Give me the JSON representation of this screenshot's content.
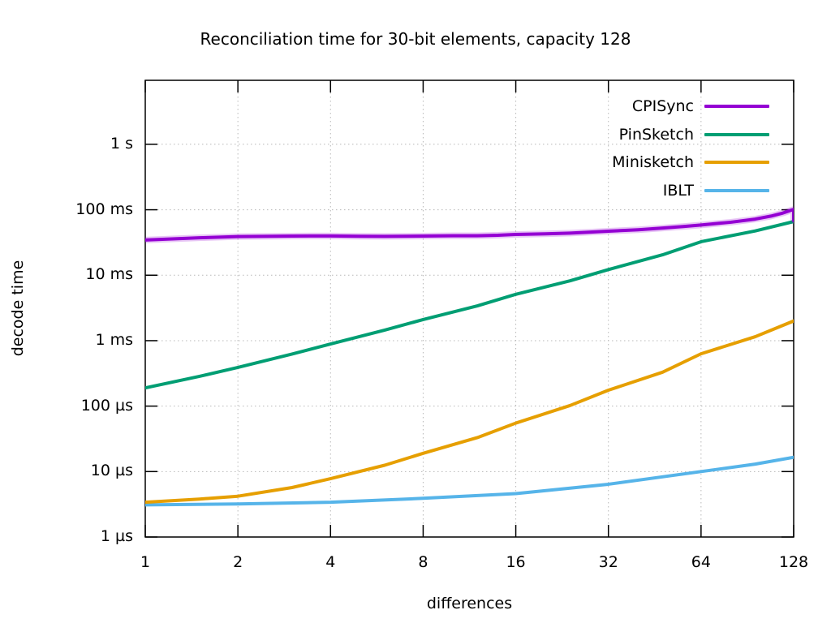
{
  "title": "Reconciliation time for 30-bit elements, capacity 128",
  "chart_data": {
    "type": "line",
    "title": "Reconciliation time for 30-bit elements, capacity 128",
    "xlabel": "differences",
    "ylabel": "decode time",
    "x_scale": "log2",
    "y_scale": "log10",
    "grid": true,
    "legend_position": "top-right-inside",
    "x_range": [
      1,
      128
    ],
    "y_range_seconds": [
      1e-06,
      9.5
    ],
    "x_ticks": [
      {
        "label": "1",
        "value": 1
      },
      {
        "label": "2",
        "value": 2
      },
      {
        "label": "4",
        "value": 4
      },
      {
        "label": "8",
        "value": 8
      },
      {
        "label": "16",
        "value": 16
      },
      {
        "label": "32",
        "value": 32
      },
      {
        "label": "64",
        "value": 64
      },
      {
        "label": "128",
        "value": 128
      }
    ],
    "y_ticks": [
      {
        "label": "1 µs",
        "value": 1e-06
      },
      {
        "label": "10 µs",
        "value": 1e-05
      },
      {
        "label": "100 µs",
        "value": 0.0001
      },
      {
        "label": "1 ms",
        "value": 0.001
      },
      {
        "label": "10 ms",
        "value": 0.01
      },
      {
        "label": "100 ms",
        "value": 0.1
      },
      {
        "label": "1 s",
        "value": 1
      }
    ],
    "colors": {
      "grid": "#b8b8b8",
      "border": "#000000",
      "cpisync": "#9400d3",
      "pinsketch": "#009e73",
      "minisketch": "#e69f00",
      "iblt": "#56b4e9"
    },
    "series": [
      {
        "name": "CPISync",
        "color": "#9400d3",
        "x": [
          1,
          1.5,
          2,
          3,
          4,
          5,
          6,
          8,
          10,
          12,
          14,
          16,
          20,
          24,
          28,
          32,
          40,
          48,
          56,
          64,
          80,
          96,
          108,
          118,
          126,
          128,
          128
        ],
        "y_us": [
          34500,
          37300,
          39000,
          39700,
          39800,
          39400,
          39200,
          39700,
          40000,
          40100,
          40800,
          42000,
          42800,
          44000,
          45500,
          47000,
          49500,
          52500,
          55500,
          58500,
          64500,
          72000,
          80000,
          89000,
          99000,
          101000,
          68500
        ]
      },
      {
        "name": "PinSketch",
        "color": "#009e73",
        "x": [
          1,
          1.5,
          2,
          3,
          4,
          6,
          8,
          12,
          16,
          24,
          32,
          48,
          64,
          96,
          128
        ],
        "y_us": [
          190,
          285,
          390,
          625,
          890,
          1450,
          2100,
          3400,
          5100,
          8200,
          12200,
          20500,
          32500,
          47500,
          66000
        ]
      },
      {
        "name": "Minisketch",
        "color": "#e69f00",
        "x": [
          1,
          1.5,
          2,
          3,
          4,
          6,
          8,
          12,
          16,
          24,
          32,
          48,
          64,
          96,
          128
        ],
        "y_us": [
          3.4,
          3.8,
          4.2,
          5.7,
          7.8,
          12.5,
          19,
          33,
          55,
          102,
          175,
          330,
          630,
          1150,
          2000
        ]
      },
      {
        "name": "IBLT",
        "color": "#56b4e9",
        "x": [
          1,
          2,
          4,
          8,
          16,
          32,
          64,
          96,
          128
        ],
        "y_us": [
          3.1,
          3.2,
          3.4,
          3.9,
          4.6,
          6.4,
          10,
          13,
          16.5
        ]
      }
    ]
  }
}
